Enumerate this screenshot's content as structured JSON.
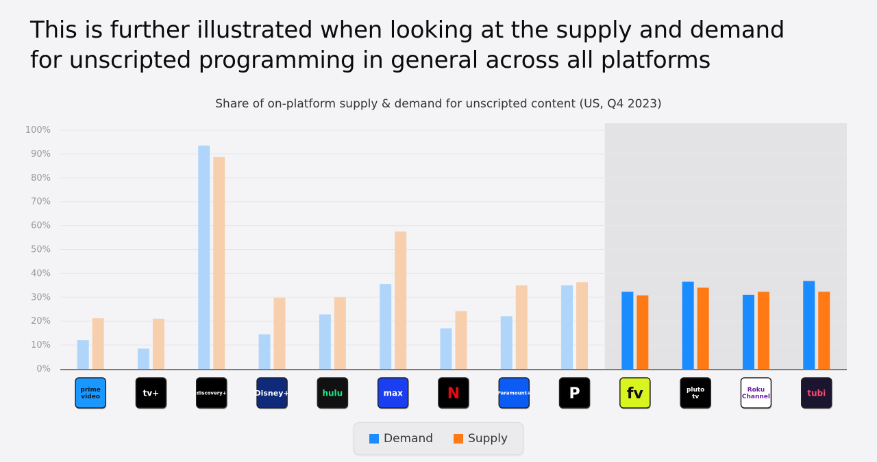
{
  "page": {
    "headline_line1": "This is further illustrated when looking at the supply and demand",
    "headline_line2": "for unscripted programming in general across all platforms"
  },
  "colors": {
    "demand": "#1a8cff",
    "supply": "#ff7a14",
    "demand_faded": "#afd6fa",
    "supply_faded": "#f8cfad",
    "highlight_bg": "#e3e3e5"
  },
  "chart_data": {
    "type": "bar",
    "title": "Share of on-platform supply & demand for unscripted content (US, Q4 2023)",
    "xlabel": "",
    "ylabel": "",
    "ylim": [
      0,
      100
    ],
    "yticks": [
      "0%",
      "10%",
      "20%",
      "30%",
      "40%",
      "50%",
      "60%",
      "70%",
      "80%",
      "90%",
      "100%"
    ],
    "grid": true,
    "legend_position": "bottom",
    "categories": [
      "Prime Video",
      "Apple TV+",
      "Discovery+",
      "Disney+",
      "Hulu",
      "Max",
      "Netflix",
      "Paramount+",
      "Peacock",
      "Freevee",
      "Pluto TV",
      "Roku Channel",
      "Tubi"
    ],
    "highlighted_from_index": 9,
    "series": [
      {
        "name": "Demand",
        "values": [
          12,
          8.5,
          93.5,
          14.5,
          22.8,
          35.5,
          17,
          22,
          35,
          32.3,
          36.5,
          31,
          36.8
        ]
      },
      {
        "name": "Supply",
        "values": [
          21.2,
          21,
          88.8,
          29.8,
          30,
          57.5,
          24.2,
          35,
          36.3,
          30.8,
          34,
          32.3,
          32.3
        ]
      }
    ]
  },
  "logos": [
    {
      "icon": "prime-video-icon",
      "text": "prime video",
      "bg": "#1a98ff",
      "fg": "#0f1a2a"
    },
    {
      "icon": "apple-tv-plus-icon",
      "text": "tv+",
      "bg": "#000000",
      "fg": "#ffffff"
    },
    {
      "icon": "discovery-plus-icon",
      "text": "discovery+",
      "bg": "#000000",
      "fg": "#ffffff"
    },
    {
      "icon": "disney-plus-icon",
      "text": "Disney+",
      "bg": "#0f2a7a",
      "fg": "#ffffff"
    },
    {
      "icon": "hulu-icon",
      "text": "hulu",
      "bg": "#111111",
      "fg": "#1ce783"
    },
    {
      "icon": "max-icon",
      "text": "max",
      "bg": "#1a3ef0",
      "fg": "#ffffff"
    },
    {
      "icon": "netflix-icon",
      "text": "N",
      "bg": "#000000",
      "fg": "#e50914"
    },
    {
      "icon": "paramount-plus-icon",
      "text": "Paramount+",
      "bg": "#0a5cf5",
      "fg": "#ffffff"
    },
    {
      "icon": "peacock-icon",
      "text": "P",
      "bg": "#000000",
      "fg": "#ffffff"
    },
    {
      "icon": "freevee-icon",
      "text": "fv",
      "bg": "#d8f51f",
      "fg": "#111111"
    },
    {
      "icon": "pluto-tv-icon",
      "text": "pluto tv",
      "bg": "#000000",
      "fg": "#ffffff"
    },
    {
      "icon": "roku-channel-icon",
      "text": "Roku Channel",
      "bg": "#ffffff",
      "fg": "#6b1f9e"
    },
    {
      "icon": "tubi-icon",
      "text": "tubi",
      "bg": "#1c1530",
      "fg": "#ff4b6e"
    }
  ]
}
